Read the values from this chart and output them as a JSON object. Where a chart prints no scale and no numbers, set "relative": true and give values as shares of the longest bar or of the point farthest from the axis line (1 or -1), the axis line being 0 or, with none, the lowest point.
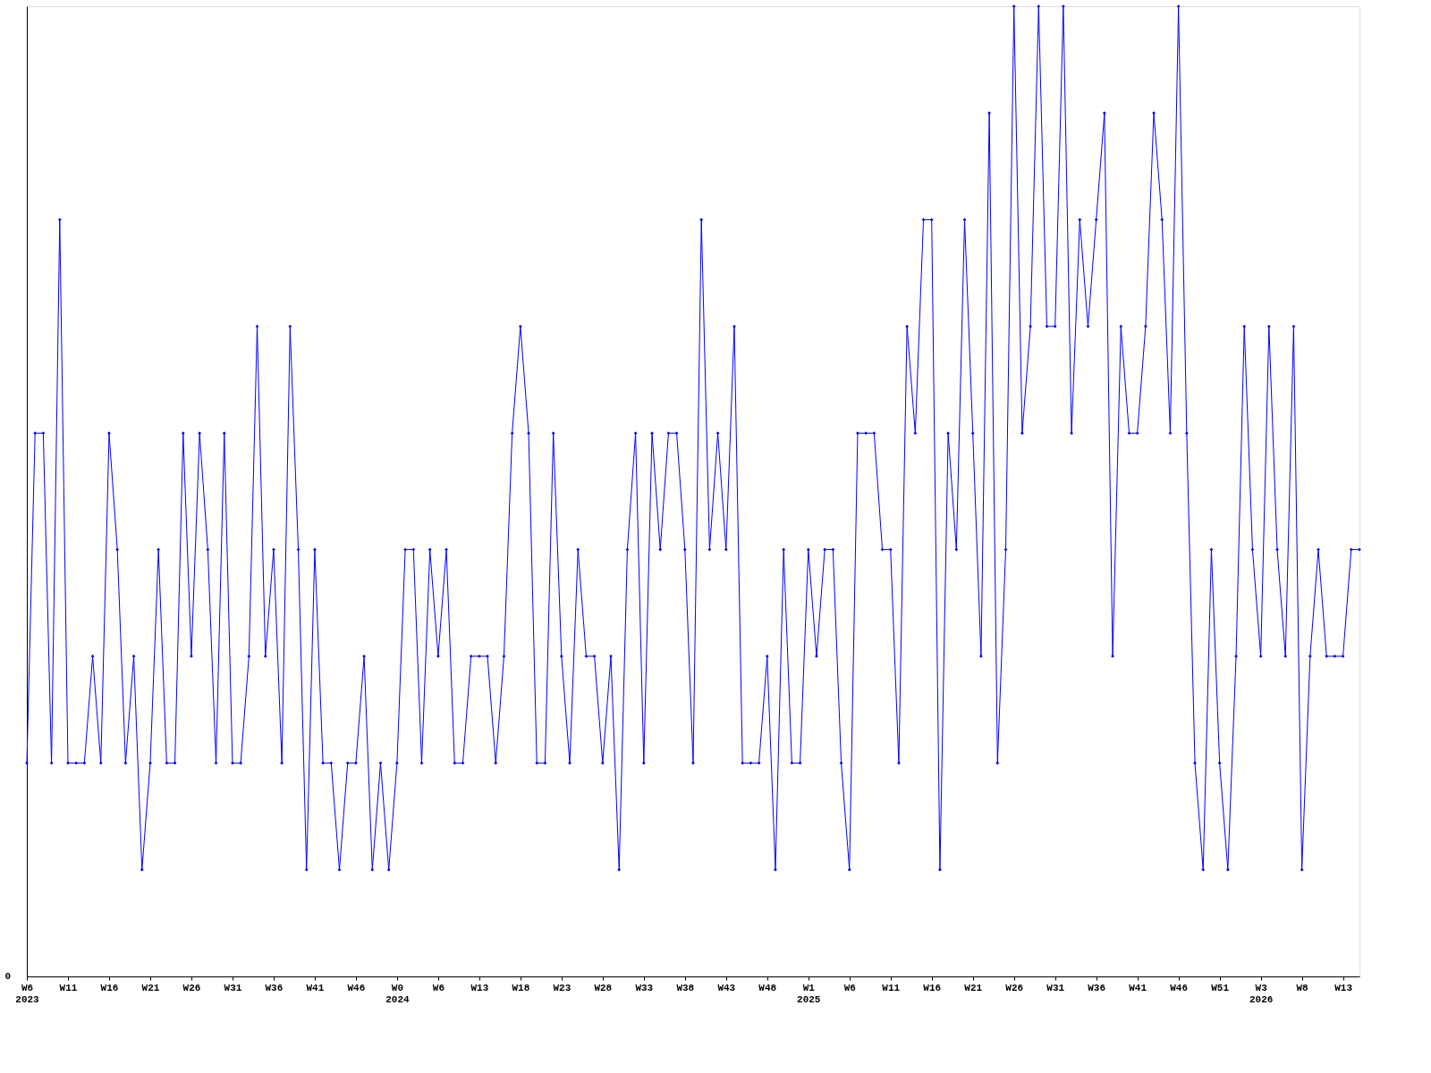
{
  "chart_data": {
    "type": "line",
    "relative": true,
    "color": "#0000ff",
    "marker": "diamond",
    "line_style": "solid",
    "grid": false,
    "annotations": [
      "0"
    ],
    "categories": [
      "W6\n2023",
      null,
      null,
      null,
      null,
      "W11",
      null,
      null,
      null,
      null,
      "W16",
      null,
      null,
      null,
      null,
      "W21",
      null,
      null,
      null,
      null,
      "W26",
      null,
      null,
      null,
      null,
      "W31",
      null,
      null,
      null,
      null,
      "W36",
      null,
      null,
      null,
      null,
      "W41",
      null,
      null,
      null,
      null,
      "W46",
      null,
      null,
      null,
      null,
      "W0\n2024",
      null,
      null,
      null,
      null,
      "W6",
      null,
      null,
      null,
      null,
      "W13",
      null,
      null,
      null,
      null,
      "W18",
      null,
      null,
      null,
      null,
      "W23",
      null,
      null,
      null,
      null,
      "W28",
      null,
      null,
      null,
      null,
      "W33",
      null,
      null,
      null,
      null,
      "W38",
      null,
      null,
      null,
      null,
      "W43",
      null,
      null,
      null,
      null,
      "W48",
      null,
      null,
      null,
      null,
      "W1\n2025",
      null,
      null,
      null,
      null,
      "W6",
      null,
      null,
      null,
      null,
      "W11",
      null,
      null,
      null,
      null,
      "W16",
      null,
      null,
      null,
      null,
      "W21",
      null,
      null,
      null,
      null,
      "W26",
      null,
      null,
      null,
      null,
      "W31",
      null,
      null,
      null,
      null,
      "W36",
      null,
      null,
      null,
      null,
      "W41",
      null,
      null,
      null,
      null,
      "W46",
      null,
      null,
      null,
      null,
      "W51",
      null,
      null,
      null,
      null,
      "W3\n2026",
      null,
      null,
      null,
      null,
      "W8",
      null,
      null,
      null,
      null,
      "W13",
      null,
      null
    ],
    "values": [
      0.22,
      0.56,
      0.56,
      0.22,
      0.78,
      0.22,
      0.22,
      0.22,
      0.33,
      0.22,
      0.56,
      0.44,
      0.22,
      0.33,
      0.11,
      0.22,
      0.44,
      0.22,
      0.22,
      0.56,
      0.33,
      0.56,
      0.44,
      0.22,
      0.56,
      0.22,
      0.22,
      0.33,
      0.67,
      0.33,
      0.44,
      0.22,
      0.67,
      0.44,
      0.11,
      0.44,
      0.22,
      0.22,
      0.11,
      0.22,
      0.22,
      0.33,
      0.11,
      0.22,
      0.11,
      0.22,
      0.44,
      0.44,
      0.22,
      0.44,
      0.33,
      0.44,
      0.22,
      0.22,
      0.33,
      0.33,
      0.33,
      0.22,
      0.33,
      0.56,
      0.67,
      0.56,
      0.22,
      0.22,
      0.56,
      0.33,
      0.22,
      0.44,
      0.33,
      0.33,
      0.22,
      0.33,
      0.11,
      0.44,
      0.56,
      0.22,
      0.56,
      0.44,
      0.56,
      0.56,
      0.44,
      0.22,
      0.78,
      0.44,
      0.56,
      0.44,
      0.67,
      0.22,
      0.22,
      0.22,
      0.33,
      0.11,
      0.44,
      0.22,
      0.22,
      0.44,
      0.33,
      0.44,
      0.44,
      0.22,
      0.11,
      0.56,
      0.56,
      0.56,
      0.44,
      0.44,
      0.22,
      0.67,
      0.56,
      0.78,
      0.78,
      0.11,
      0.56,
      0.44,
      0.78,
      0.56,
      0.33,
      0.89,
      0.22,
      0.44,
      1,
      0.56,
      0.67,
      1,
      0.67,
      0.67,
      1,
      0.56,
      0.78,
      0.67,
      0.78,
      0.89,
      0.33,
      0.67,
      0.56,
      0.56,
      0.67,
      0.89,
      0.78,
      0.56,
      1,
      0.56,
      0.22,
      0.11,
      0.44,
      0.22,
      0.11,
      0.33,
      0.67,
      0.44,
      0.33,
      0.67,
      0.44,
      0.33,
      0.67,
      0.11,
      0.33,
      0.44,
      0.33,
      0.33,
      0.33,
      0.44,
      0.44
    ]
  }
}
